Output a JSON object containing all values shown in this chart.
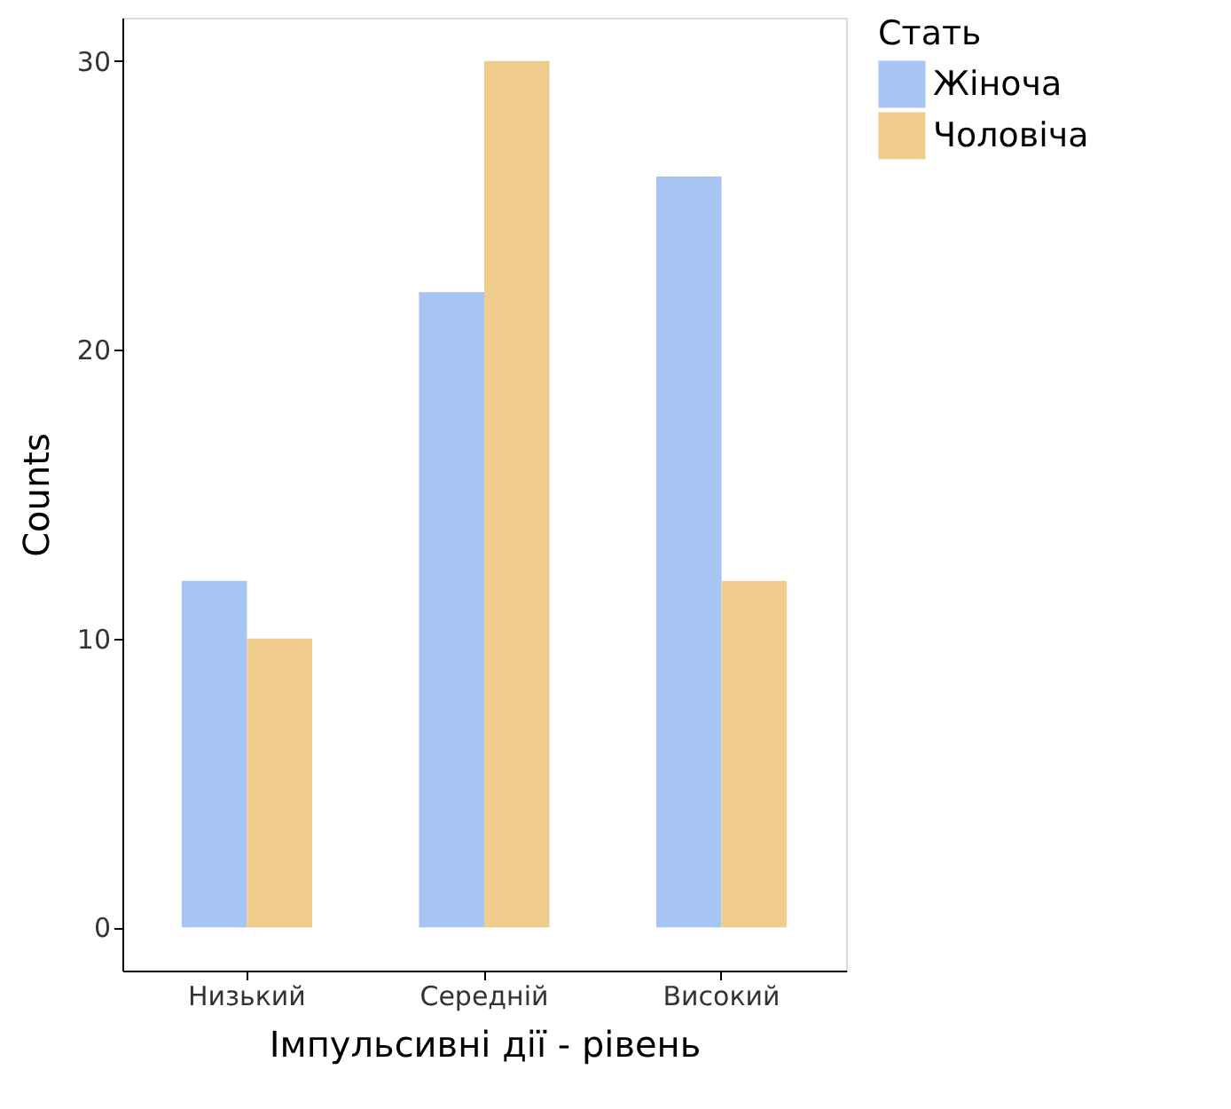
{
  "chart_data": {
    "type": "bar",
    "xlabel": "Імпульсивні дії - рівень",
    "ylabel": "Counts",
    "legend_title": "Стать",
    "categories": [
      "Низький",
      "Середній",
      "Високий"
    ],
    "series": [
      {
        "name": "Жіноча",
        "color": "#a7c5f2",
        "values": [
          12,
          22,
          26
        ]
      },
      {
        "name": "Чоловіча",
        "color": "#f0cd8c",
        "values": [
          10,
          30,
          12
        ]
      }
    ],
    "ylim": [
      -1.5,
      31.5
    ],
    "yticks": [
      0,
      10,
      20,
      30
    ],
    "grid": false,
    "legend": "right"
  }
}
